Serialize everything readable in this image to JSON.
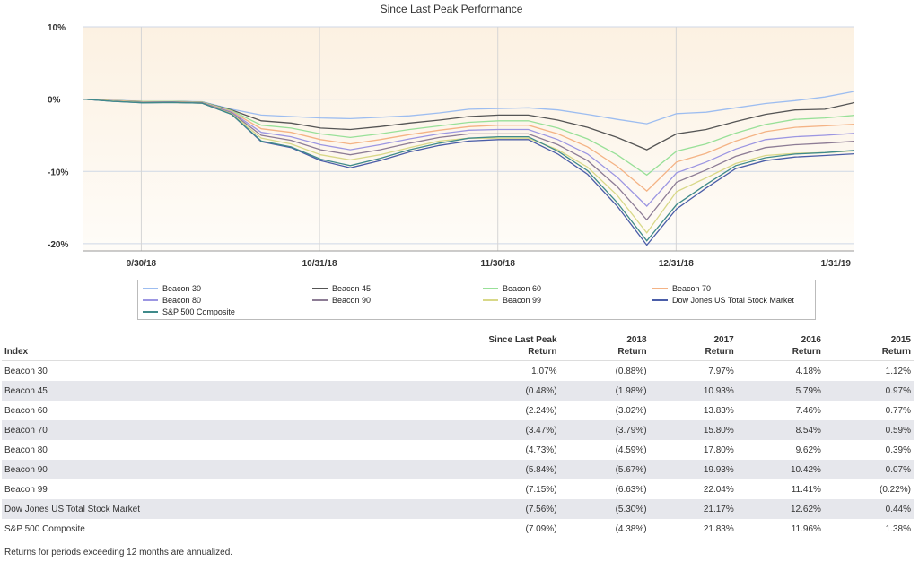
{
  "chart_data": {
    "type": "line",
    "title": "Since Last Peak Performance",
    "xlabel": "",
    "ylabel": "",
    "x_ticks": [
      "9/30/18",
      "10/31/18",
      "11/30/18",
      "12/31/18",
      "1/31/19"
    ],
    "y_ticks": [
      "10%",
      "0%",
      "-10%",
      "-20%"
    ],
    "ylim": [
      -21,
      10
    ],
    "grid": true,
    "legend_position": "bottom",
    "plot_background": [
      "#fcf1e2",
      "#fefcf8"
    ],
    "series": [
      {
        "name": "Beacon 30",
        "color": "#9dbdf0",
        "values": [
          0,
          -0.15,
          -0.3,
          -0.3,
          -0.35,
          -1.4,
          -2.2,
          -2.4,
          -2.6,
          -2.7,
          -2.5,
          -2.3,
          -1.9,
          -1.4,
          -1.3,
          -1.2,
          -1.5,
          -2.1,
          -2.8,
          -3.4,
          -2.0,
          -1.8,
          -1.2,
          -0.6,
          -0.2,
          0.3,
          1.07
        ]
      },
      {
        "name": "Beacon 45",
        "color": "#555555",
        "values": [
          0,
          -0.2,
          -0.3,
          -0.3,
          -0.4,
          -1.5,
          -3.0,
          -3.3,
          -4.0,
          -4.2,
          -3.8,
          -3.3,
          -2.9,
          -2.4,
          -2.2,
          -2.2,
          -2.9,
          -3.9,
          -5.3,
          -7.0,
          -4.8,
          -4.2,
          -3.1,
          -2.1,
          -1.5,
          -1.4,
          -0.48
        ]
      },
      {
        "name": "Beacon 60",
        "color": "#98e098",
        "values": [
          0,
          -0.2,
          -0.3,
          -0.3,
          -0.4,
          -1.6,
          -3.6,
          -4.0,
          -4.8,
          -5.3,
          -4.8,
          -4.2,
          -3.7,
          -3.2,
          -3.0,
          -3.0,
          -4.0,
          -5.5,
          -7.7,
          -10.5,
          -7.2,
          -6.2,
          -4.7,
          -3.5,
          -2.8,
          -2.6,
          -2.24
        ]
      },
      {
        "name": "Beacon 70",
        "color": "#f4b385",
        "values": [
          0,
          -0.2,
          -0.35,
          -0.35,
          -0.45,
          -1.7,
          -4.1,
          -4.6,
          -5.6,
          -6.2,
          -5.6,
          -4.9,
          -4.3,
          -3.8,
          -3.6,
          -3.6,
          -4.8,
          -6.6,
          -9.3,
          -12.7,
          -8.7,
          -7.5,
          -5.8,
          -4.5,
          -3.9,
          -3.7,
          -3.47
        ]
      },
      {
        "name": "Beacon 80",
        "color": "#9c96e2",
        "values": [
          0,
          -0.25,
          -0.4,
          -0.4,
          -0.5,
          -1.8,
          -4.6,
          -5.2,
          -6.3,
          -7.0,
          -6.3,
          -5.5,
          -4.8,
          -4.3,
          -4.2,
          -4.2,
          -5.6,
          -7.6,
          -10.8,
          -14.8,
          -10.2,
          -8.7,
          -6.9,
          -5.6,
          -5.2,
          -5.0,
          -4.73
        ]
      },
      {
        "name": "Beacon 90",
        "color": "#8d7c95",
        "values": [
          0,
          -0.25,
          -0.4,
          -0.4,
          -0.5,
          -1.9,
          -5.0,
          -5.7,
          -7.0,
          -7.7,
          -7.0,
          -6.1,
          -5.3,
          -4.8,
          -4.8,
          -4.8,
          -6.3,
          -8.5,
          -12.1,
          -16.7,
          -11.5,
          -9.8,
          -7.9,
          -6.7,
          -6.3,
          -6.1,
          -5.84
        ]
      },
      {
        "name": "Beacon 99",
        "color": "#d8d888",
        "values": [
          0,
          -0.25,
          -0.45,
          -0.45,
          -0.55,
          -2.0,
          -5.4,
          -6.2,
          -7.7,
          -8.4,
          -7.7,
          -6.7,
          -5.8,
          -5.4,
          -5.4,
          -5.4,
          -7.0,
          -9.4,
          -13.3,
          -18.5,
          -12.8,
          -10.9,
          -8.9,
          -7.8,
          -7.5,
          -7.4,
          -7.15
        ]
      },
      {
        "name": "Dow Jones US Total Stock Market",
        "color": "#4a5da8",
        "values": [
          0,
          -0.3,
          -0.5,
          -0.45,
          -0.55,
          -2.1,
          -5.9,
          -6.7,
          -8.5,
          -9.5,
          -8.5,
          -7.3,
          -6.4,
          -5.8,
          -5.6,
          -5.6,
          -7.6,
          -10.4,
          -14.8,
          -20.2,
          -15.2,
          -12.3,
          -9.6,
          -8.5,
          -8.0,
          -7.8,
          -7.56
        ]
      },
      {
        "name": "S&P 500 Composite",
        "color": "#3f8a8a",
        "values": [
          0,
          -0.3,
          -0.5,
          -0.45,
          -0.55,
          -2.1,
          -5.8,
          -6.6,
          -8.3,
          -9.2,
          -8.2,
          -7.0,
          -6.1,
          -5.4,
          -5.2,
          -5.2,
          -7.2,
          -9.9,
          -14.3,
          -19.6,
          -14.6,
          -11.8,
          -9.2,
          -8.1,
          -7.6,
          -7.4,
          -7.09
        ]
      }
    ]
  },
  "table": {
    "headers": [
      {
        "line1": "",
        "line2": "Index"
      },
      {
        "line1": "Since Last Peak",
        "line2": "Return"
      },
      {
        "line1": "2018",
        "line2": "Return"
      },
      {
        "line1": "2017",
        "line2": "Return"
      },
      {
        "line1": "2016",
        "line2": "Return"
      },
      {
        "line1": "2015",
        "line2": "Return"
      }
    ],
    "rows": [
      [
        "Beacon 30",
        "1.07%",
        "(0.88%)",
        "7.97%",
        "4.18%",
        "1.12%"
      ],
      [
        "Beacon 45",
        "(0.48%)",
        "(1.98%)",
        "10.93%",
        "5.79%",
        "0.97%"
      ],
      [
        "Beacon 60",
        "(2.24%)",
        "(3.02%)",
        "13.83%",
        "7.46%",
        "0.77%"
      ],
      [
        "Beacon 70",
        "(3.47%)",
        "(3.79%)",
        "15.80%",
        "8.54%",
        "0.59%"
      ],
      [
        "Beacon 80",
        "(4.73%)",
        "(4.59%)",
        "17.80%",
        "9.62%",
        "0.39%"
      ],
      [
        "Beacon 90",
        "(5.84%)",
        "(5.67%)",
        "19.93%",
        "10.42%",
        "0.07%"
      ],
      [
        "Beacon 99",
        "(7.15%)",
        "(6.63%)",
        "22.04%",
        "11.41%",
        "(0.22%)"
      ],
      [
        "Dow Jones US Total Stock Market",
        "(7.56%)",
        "(5.30%)",
        "21.17%",
        "12.62%",
        "0.44%"
      ],
      [
        "S&P 500 Composite",
        "(7.09%)",
        "(4.38%)",
        "21.83%",
        "11.96%",
        "1.38%"
      ]
    ]
  },
  "footnote": "Returns for periods exceeding 12 months are annualized."
}
